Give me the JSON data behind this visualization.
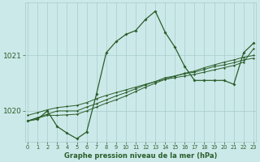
{
  "title": "Graphe pression niveau de la mer (hPa)",
  "background_color": "#cce9e9",
  "grid_color": "#a8cccc",
  "line_color": "#2a5e2a",
  "x_ticks": [
    0,
    1,
    2,
    3,
    4,
    5,
    6,
    7,
    8,
    9,
    10,
    11,
    12,
    13,
    14,
    15,
    16,
    17,
    18,
    19,
    20,
    21,
    22,
    23
  ],
  "y_ticks": [
    1020,
    1021
  ],
  "ylim": [
    1019.45,
    1021.95
  ],
  "xlim": [
    -0.3,
    23.3
  ],
  "main_series": [
    1019.82,
    1019.85,
    1020.0,
    1019.72,
    1019.6,
    1019.5,
    1019.62,
    1020.3,
    1021.05,
    1021.25,
    1021.38,
    1021.45,
    1021.65,
    1021.8,
    1021.42,
    1021.15,
    1020.8,
    1020.55,
    1020.55,
    1020.55,
    1020.55,
    1020.48,
    1021.05,
    1021.22
  ],
  "line2": [
    1019.82,
    1019.87,
    1019.92,
    1019.92,
    1019.93,
    1019.94,
    1020.0,
    1020.07,
    1020.14,
    1020.2,
    1020.27,
    1020.35,
    1020.43,
    1020.5,
    1020.57,
    1020.63,
    1020.68,
    1020.72,
    1020.78,
    1020.83,
    1020.88,
    1020.92,
    1020.97,
    1021.0
  ],
  "line3": [
    1019.82,
    1019.88,
    1019.94,
    1020.0,
    1020.0,
    1020.0,
    1020.07,
    1020.13,
    1020.2,
    1020.27,
    1020.33,
    1020.4,
    1020.47,
    1020.53,
    1020.6,
    1020.63,
    1020.67,
    1020.7,
    1020.75,
    1020.8,
    1020.83,
    1020.87,
    1020.92,
    1020.95
  ],
  "line4": [
    1019.92,
    1019.97,
    1020.02,
    1020.06,
    1020.08,
    1020.1,
    1020.15,
    1020.22,
    1020.28,
    1020.33,
    1020.38,
    1020.43,
    1020.48,
    1020.53,
    1020.57,
    1020.6,
    1020.63,
    1020.66,
    1020.7,
    1020.74,
    1020.78,
    1020.82,
    1020.88,
    1021.12
  ]
}
